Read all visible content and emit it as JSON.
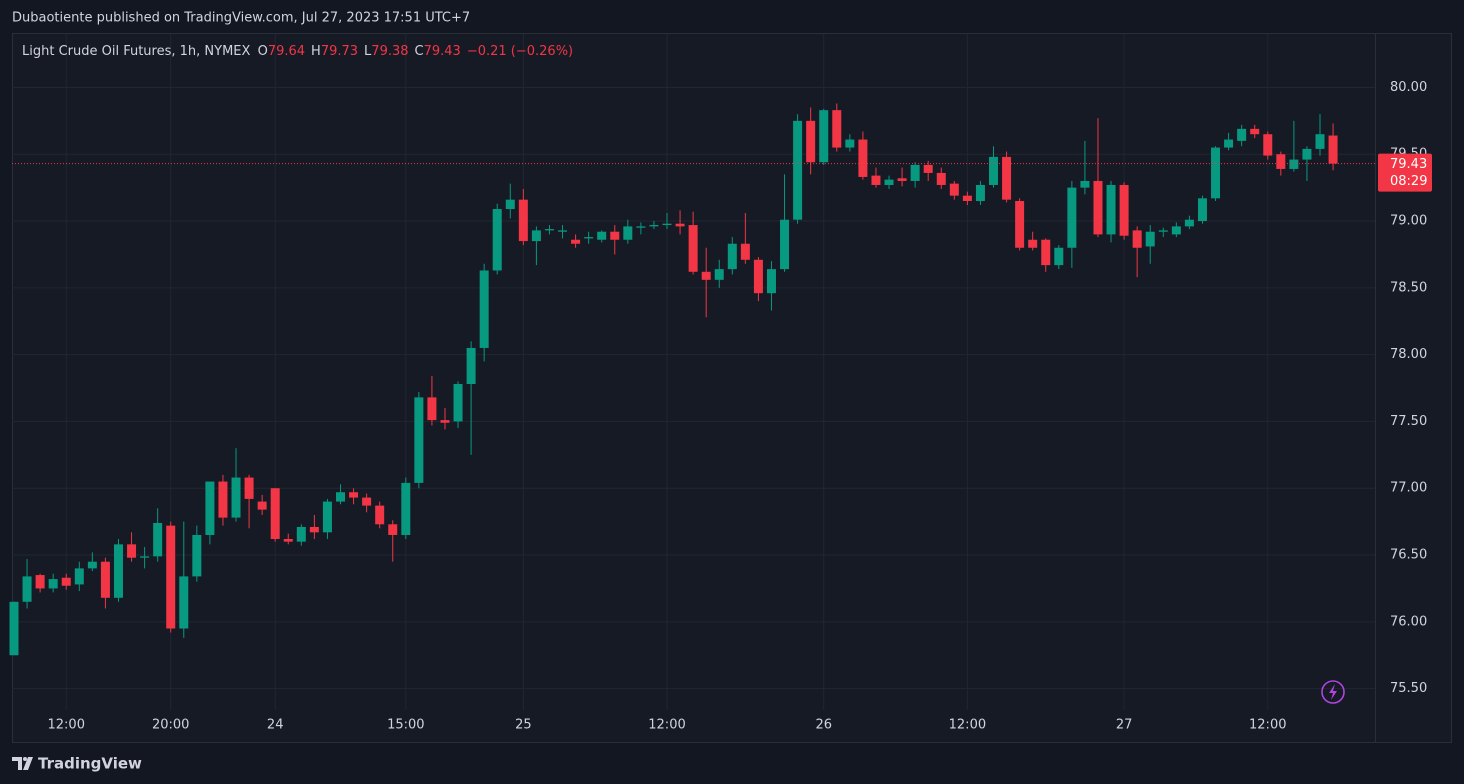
{
  "header": {
    "published": "Dubaotiente published on TradingView.com, Jul 27, 2023 17:51 UTC+7"
  },
  "footer": {
    "brand": "TradingView"
  },
  "chart_data": {
    "type": "candlestick",
    "title": "Light Crude Oil Futures, 1h, NYMEX",
    "ohlc": [
      {
        "key": "O",
        "value": "79.64"
      },
      {
        "key": "H",
        "value": "79.73"
      },
      {
        "key": "L",
        "value": "79.38"
      },
      {
        "key": "C",
        "value": "79.43"
      }
    ],
    "change": "−0.21 (−0.26%)",
    "up_color": "#089981",
    "down_color": "#f23645",
    "categories": [
      null,
      null,
      null,
      null,
      "12:00",
      null,
      null,
      null,
      null,
      null,
      null,
      null,
      "20:00",
      null,
      null,
      null,
      null,
      null,
      null,
      null,
      "24",
      null,
      null,
      null,
      null,
      null,
      null,
      null,
      null,
      null,
      "15:00",
      null,
      null,
      null,
      null,
      null,
      null,
      null,
      null,
      "25",
      null,
      null,
      null,
      null,
      null,
      null,
      null,
      null,
      null,
      null,
      "12:00",
      null,
      null,
      null,
      null,
      null,
      null,
      null,
      null,
      null,
      null,
      null,
      "26",
      null,
      null,
      null,
      null,
      null,
      null,
      null,
      null,
      null,
      null,
      "12:00",
      null,
      null,
      null,
      null,
      null,
      null,
      null,
      null,
      null,
      null,
      null,
      "27",
      null,
      null,
      null,
      null,
      null,
      null,
      null,
      null,
      null,
      null,
      "12:00",
      null,
      null,
      null,
      null,
      null
    ],
    "open": [
      75.75,
      76.15,
      76.35,
      76.25,
      76.33,
      76.28,
      76.4,
      76.45,
      76.18,
      76.58,
      76.48,
      76.49,
      76.72,
      75.95,
      76.34,
      76.65,
      77.05,
      76.78,
      77.08,
      76.9,
      77.0,
      76.62,
      76.6,
      76.71,
      76.67,
      76.9,
      76.97,
      76.93,
      76.87,
      76.73,
      76.65,
      77.04,
      77.68,
      77.51,
      77.5,
      77.78,
      78.05,
      78.63,
      79.09,
      79.16,
      78.85,
      78.93,
      78.92,
      78.86,
      78.87,
      78.86,
      78.92,
      78.86,
      78.95,
      78.96,
      78.97,
      78.98,
      78.97,
      78.62,
      78.56,
      78.64,
      78.83,
      78.71,
      78.46,
      78.64,
      79.01,
      79.75,
      79.44,
      79.83,
      79.55,
      79.61,
      79.34,
      79.27,
      79.32,
      79.3,
      79.42,
      79.36,
      79.28,
      79.19,
      79.15,
      79.27,
      79.48,
      79.15,
      78.86,
      78.86,
      78.67,
      78.8,
      79.25,
      79.3,
      78.9,
      79.27,
      78.93,
      78.81,
      78.92,
      78.9,
      78.96,
      79.0,
      79.17,
      79.55,
      79.6,
      79.69,
      79.65,
      79.5,
      79.39,
      79.46,
      79.54,
      79.64
    ],
    "high": [
      76.15,
      76.47,
      76.36,
      76.36,
      76.36,
      76.45,
      76.52,
      76.48,
      76.62,
      76.67,
      76.56,
      76.85,
      76.75,
      76.75,
      76.72,
      77.05,
      77.1,
      77.3,
      77.1,
      76.95,
      77.0,
      76.66,
      76.73,
      76.8,
      76.92,
      77.03,
      77.0,
      76.96,
      76.9,
      76.76,
      77.08,
      77.72,
      77.84,
      77.6,
      77.8,
      78.1,
      78.68,
      79.13,
      79.28,
      79.24,
      78.96,
      78.97,
      78.97,
      78.9,
      78.92,
      78.93,
      78.97,
      79.01,
      78.99,
      79.0,
      79.06,
      79.08,
      79.07,
      78.8,
      78.71,
      78.88,
      79.06,
      78.73,
      78.7,
      79.35,
      79.8,
      79.85,
      79.84,
      79.88,
      79.65,
      79.67,
      79.4,
      79.34,
      79.4,
      79.44,
      79.45,
      79.4,
      79.3,
      79.22,
      79.3,
      79.56,
      79.52,
      79.17,
      78.92,
      78.87,
      78.82,
      79.3,
      79.6,
      79.77,
      79.3,
      79.29,
      78.96,
      78.97,
      78.95,
      78.99,
      79.04,
      79.19,
      79.56,
      79.66,
      79.72,
      79.72,
      79.67,
      79.52,
      79.75,
      79.56,
      79.8,
      79.73
    ],
    "low": [
      75.75,
      76.1,
      76.22,
      76.22,
      76.24,
      76.23,
      76.38,
      76.1,
      76.15,
      76.45,
      76.4,
      76.45,
      75.92,
      75.88,
      76.3,
      76.58,
      76.72,
      76.75,
      76.7,
      76.8,
      76.6,
      76.58,
      76.57,
      76.62,
      76.62,
      76.88,
      76.88,
      76.82,
      76.7,
      76.45,
      76.62,
      77.0,
      77.47,
      77.44,
      77.45,
      77.25,
      77.95,
      78.6,
      79.02,
      78.82,
      78.67,
      78.9,
      78.87,
      78.8,
      78.83,
      78.84,
      78.75,
      78.83,
      78.9,
      78.94,
      78.94,
      78.9,
      78.6,
      78.28,
      78.5,
      78.6,
      78.68,
      78.4,
      78.33,
      78.62,
      78.98,
      79.35,
      79.42,
      79.52,
      79.52,
      79.31,
      79.25,
      79.24,
      79.26,
      79.25,
      79.3,
      79.24,
      79.16,
      79.12,
      79.12,
      79.25,
      79.14,
      78.78,
      78.78,
      78.62,
      78.64,
      78.65,
      79.2,
      78.88,
      78.84,
      78.86,
      78.58,
      78.68,
      78.88,
      78.88,
      78.94,
      78.98,
      79.15,
      79.53,
      79.56,
      79.62,
      79.46,
      79.34,
      79.37,
      79.3,
      79.49,
      79.38
    ],
    "close": [
      76.15,
      76.34,
      76.25,
      76.32,
      76.27,
      76.4,
      76.45,
      76.18,
      76.58,
      76.48,
      76.49,
      76.74,
      75.95,
      76.34,
      76.65,
      77.05,
      76.78,
      77.08,
      76.92,
      76.84,
      76.62,
      76.6,
      76.71,
      76.67,
      76.9,
      76.97,
      76.93,
      76.87,
      76.73,
      76.65,
      77.04,
      77.68,
      77.51,
      77.49,
      77.78,
      78.05,
      78.63,
      79.09,
      79.16,
      78.85,
      78.93,
      78.94,
      78.93,
      78.83,
      78.88,
      78.92,
      78.86,
      78.96,
      78.96,
      78.97,
      78.98,
      78.96,
      78.62,
      78.56,
      78.64,
      78.83,
      78.71,
      78.46,
      78.64,
      79.01,
      79.75,
      79.44,
      79.83,
      79.55,
      79.61,
      79.33,
      79.27,
      79.31,
      79.3,
      79.42,
      79.36,
      79.27,
      79.19,
      79.15,
      79.27,
      79.48,
      79.16,
      78.8,
      78.8,
      78.67,
      78.8,
      79.25,
      79.3,
      78.9,
      79.27,
      78.89,
      78.8,
      78.92,
      78.93,
      78.96,
      79.01,
      79.17,
      79.55,
      79.61,
      79.69,
      79.65,
      79.49,
      79.39,
      79.46,
      79.54,
      79.65,
      79.43
    ],
    "ylim": [
      75.34,
      80.4
    ],
    "yticks": [
      {
        "value": 75.5,
        "label": "75.50"
      },
      {
        "value": 76,
        "label": "76.00"
      },
      {
        "value": 76.5,
        "label": "76.50"
      },
      {
        "value": 77,
        "label": "77.00"
      },
      {
        "value": 77.5,
        "label": "77.50"
      },
      {
        "value": 78,
        "label": "78.00"
      },
      {
        "value": 78.5,
        "label": "78.50"
      },
      {
        "value": 79,
        "label": "79.00"
      },
      {
        "value": 79.5,
        "label": "79.50"
      },
      {
        "value": 80,
        "label": "80.00"
      }
    ],
    "grid": true,
    "last_price": 79.43,
    "countdown": "08:29"
  }
}
